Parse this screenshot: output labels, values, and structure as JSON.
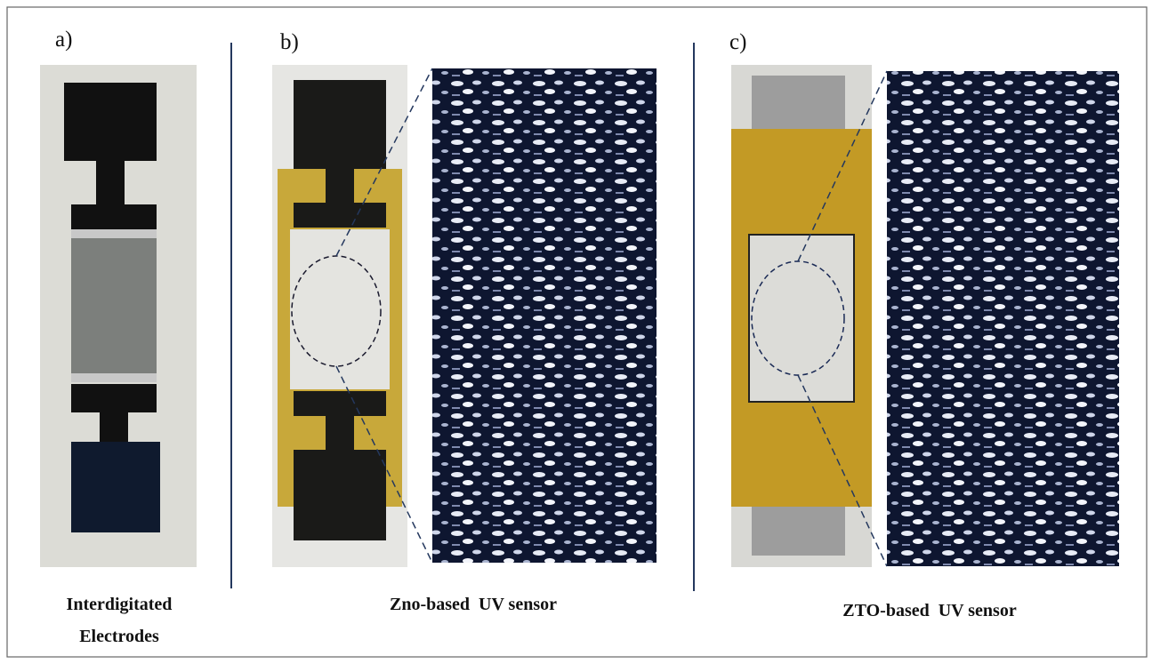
{
  "panels": [
    {
      "label": "a)",
      "caption": [
        "Interdigitated",
        "Electrodes"
      ]
    },
    {
      "label": "b)",
      "caption": [
        "Zno-based  UV sensor"
      ]
    },
    {
      "label": "c)",
      "caption": [
        "ZTO-based  UV sensor"
      ]
    }
  ]
}
